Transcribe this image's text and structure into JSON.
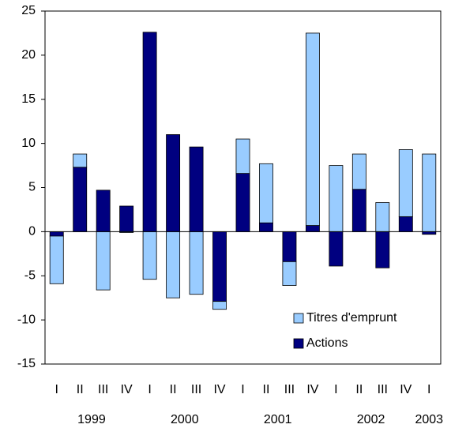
{
  "chart_data": {
    "type": "stacked_bar",
    "categories": [
      "I",
      "II",
      "III",
      "IV",
      "I",
      "II",
      "III",
      "IV",
      "I",
      "II",
      "III",
      "IV",
      "I",
      "II",
      "III",
      "IV",
      "I"
    ],
    "years": [
      "1999",
      "2000",
      "2001",
      "2002",
      "2003"
    ],
    "series": [
      {
        "name": "Titres d'emprunt",
        "color": "#99ccff",
        "values": [
          -5.4,
          1.5,
          -6.6,
          -0.1,
          -5.4,
          -7.5,
          -7.1,
          -0.9,
          3.9,
          6.7,
          -2.7,
          21.8,
          7.5,
          4.0,
          3.3,
          7.6,
          8.8
        ]
      },
      {
        "name": "Actions",
        "color": "#000080",
        "values": [
          -0.5,
          7.3,
          4.7,
          2.9,
          22.6,
          11.0,
          9.6,
          -7.9,
          6.6,
          1.0,
          -3.4,
          0.7,
          -3.9,
          4.8,
          -4.1,
          1.7,
          -0.3
        ]
      }
    ],
    "ylim": [
      -15,
      25
    ],
    "yticks": [
      -15,
      -10,
      -5,
      0,
      5,
      10,
      15,
      20,
      25
    ],
    "legend": "lower right"
  }
}
